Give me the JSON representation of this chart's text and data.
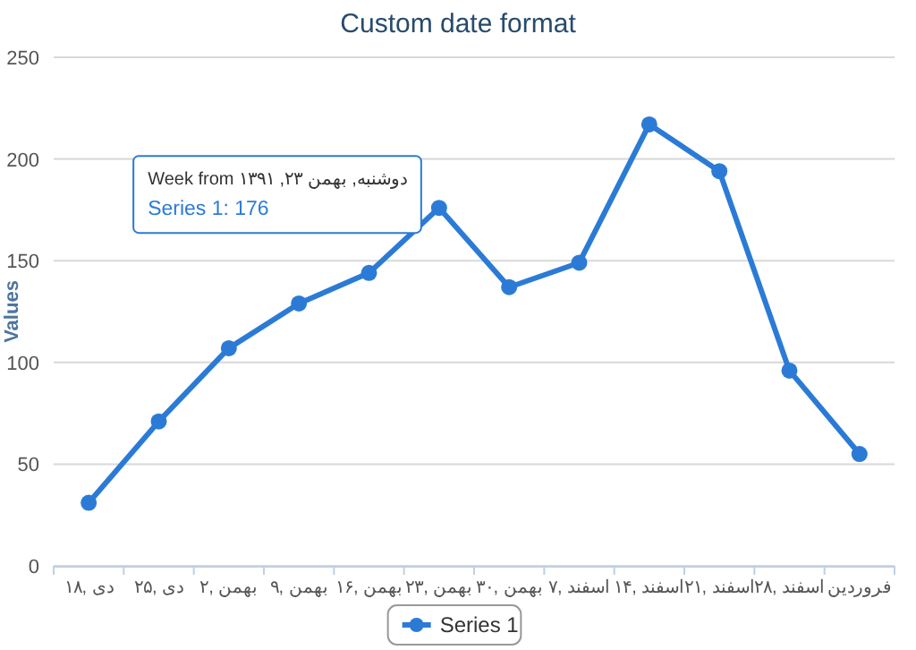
{
  "chart_data": {
    "type": "line",
    "title": "Custom date format",
    "ylabel": "Values",
    "categories": [
      "دی ,۱۸",
      "دی ,۲۵",
      "بهمن ,۲",
      "بهمن ,۹",
      "بهمن ,۱۶",
      "بهمن ,۲۳",
      "بهمن ,۳۰",
      "اسفند ,۷",
      "اسفند ,۱۴",
      "اسفند ,۲۱",
      "اسفند ,۲۸",
      "فروردین"
    ],
    "series": [
      {
        "name": "Series 1",
        "color": "#2b7bd6",
        "values": [
          31,
          71,
          107,
          129,
          144,
          176,
          137,
          149,
          217,
          194,
          96,
          55
        ]
      }
    ],
    "ylim": [
      0,
      250
    ],
    "yticks": [
      0,
      50,
      100,
      150,
      200,
      250
    ],
    "grid": "y",
    "legend": "bottom",
    "marker": "circle",
    "line_style": "solid",
    "annotations": [
      {
        "text": "Week from دوشنبه, بهمن ۲۳, ۱۳۹۱\nSeries 1: 176",
        "x": "بهمن ,۲۳",
        "y": 176
      }
    ]
  }
}
